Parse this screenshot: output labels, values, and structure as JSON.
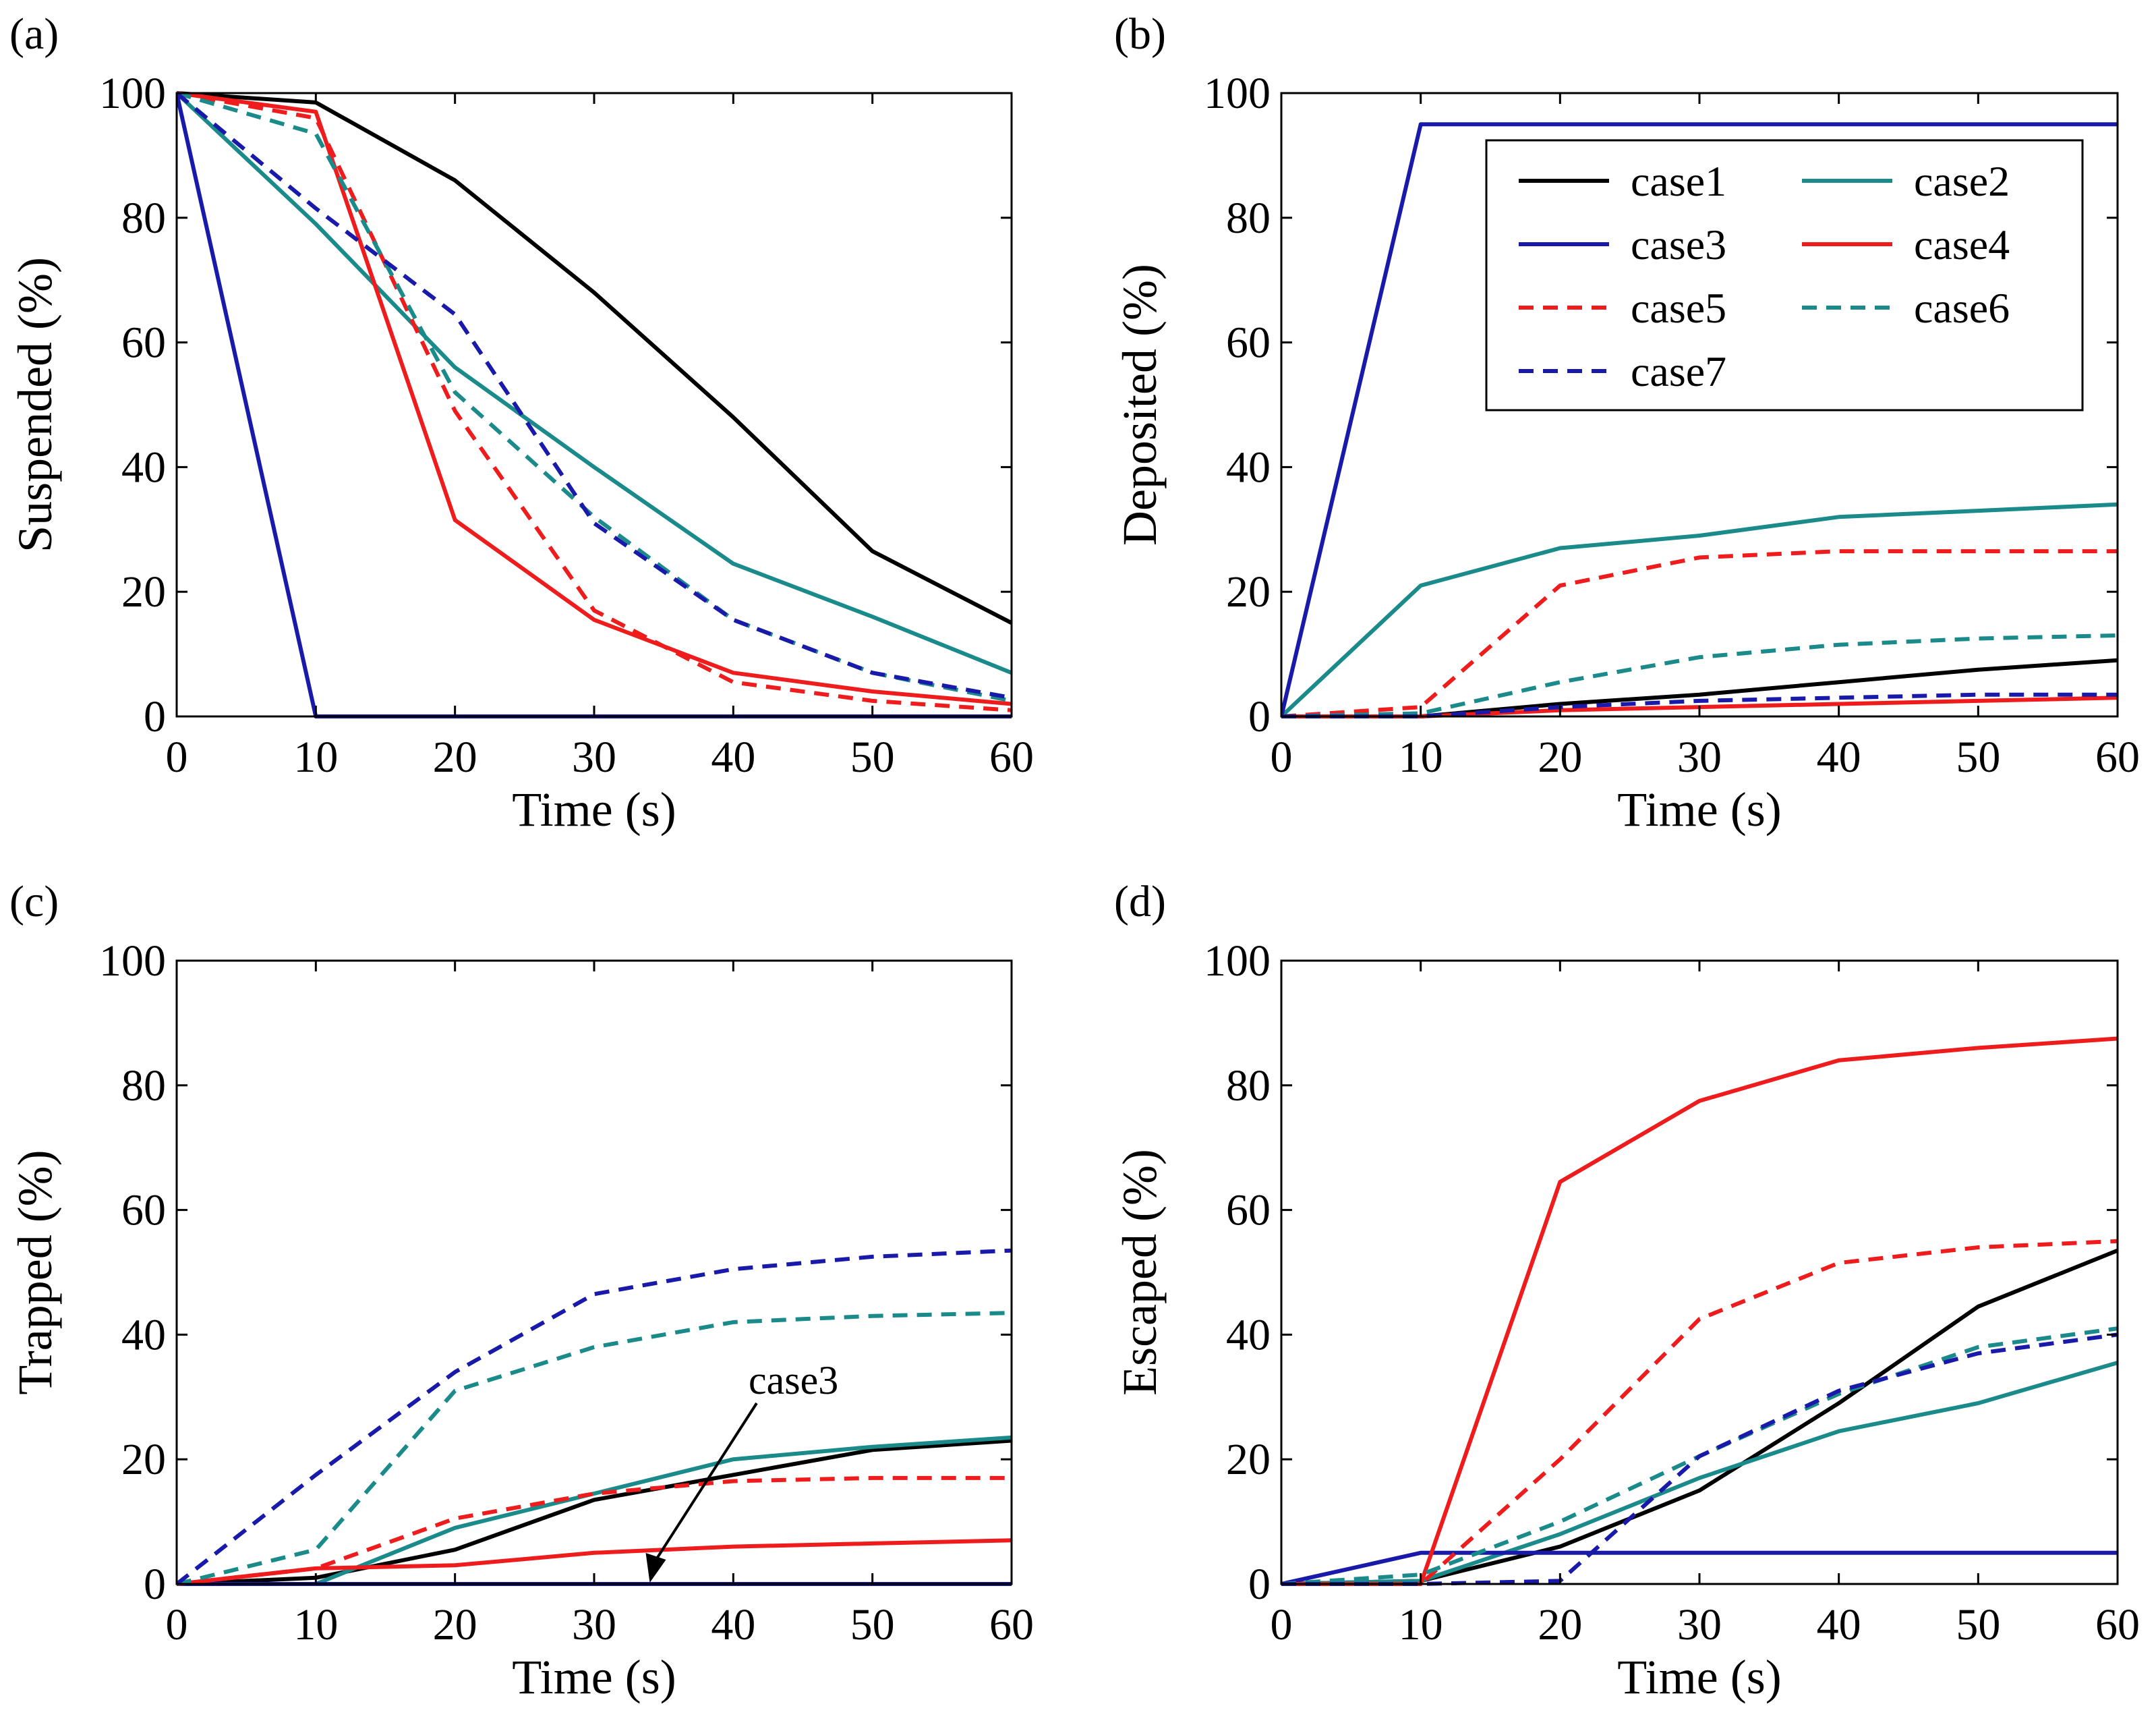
{
  "figure": {
    "panels": [
      "(a)",
      "(b)",
      "(c)",
      "(d)"
    ],
    "legend_position": "top-right of panel (b)"
  },
  "series_styles": {
    "case1": {
      "color": "#000000",
      "dash": "solid"
    },
    "case2": {
      "color": "#1b8a8a",
      "dash": "solid"
    },
    "case3": {
      "color": "#1a1aaa",
      "dash": "solid"
    },
    "case4": {
      "color": "#ee1c1c",
      "dash": "solid"
    },
    "case5": {
      "color": "#ee1c1c",
      "dash": "dashed"
    },
    "case6": {
      "color": "#1b8a8a",
      "dash": "dashed"
    },
    "case7": {
      "color": "#1a1aaa",
      "dash": "dashed"
    }
  },
  "legend": {
    "entries": [
      "case1",
      "case2",
      "case3",
      "case4",
      "case5",
      "case6",
      "case7"
    ]
  },
  "annotation": {
    "text": "case3",
    "panel": "(c)",
    "points_to": {
      "x": 34,
      "y": 0
    }
  },
  "chart_data": [
    {
      "type": "line",
      "panel": "(a)",
      "xlabel": "Time (s)",
      "ylabel": "Suspended (%)",
      "xlim": [
        0,
        60
      ],
      "ylim": [
        0,
        100
      ],
      "xticks": [
        0,
        10,
        20,
        30,
        40,
        50,
        60
      ],
      "yticks": [
        0,
        20,
        40,
        60,
        80,
        100
      ],
      "x": [
        0,
        10,
        20,
        30,
        40,
        50,
        60
      ],
      "series": [
        {
          "name": "case1",
          "values": [
            100,
            98.5,
            86,
            68,
            48,
            26.5,
            15
          ]
        },
        {
          "name": "case2",
          "values": [
            100,
            79,
            56,
            40,
            24.5,
            16,
            7
          ]
        },
        {
          "name": "case3",
          "values": [
            100,
            0,
            0,
            0,
            0,
            0,
            0
          ]
        },
        {
          "name": "case4",
          "values": [
            100,
            97,
            31.5,
            15.5,
            7,
            4,
            2
          ]
        },
        {
          "name": "case5",
          "values": [
            100,
            96,
            49,
            17,
            5.5,
            2.5,
            1
          ]
        },
        {
          "name": "case6",
          "values": [
            100,
            93.5,
            52,
            32,
            15.5,
            7,
            2.5
          ]
        },
        {
          "name": "case7",
          "values": [
            100,
            81.5,
            64.5,
            31,
            15.5,
            7,
            3
          ]
        }
      ]
    },
    {
      "type": "line",
      "panel": "(b)",
      "xlabel": "Time (s)",
      "ylabel": "Deposited (%)",
      "xlim": [
        0,
        60
      ],
      "ylim": [
        0,
        100
      ],
      "xticks": [
        0,
        10,
        20,
        30,
        40,
        50,
        60
      ],
      "yticks": [
        0,
        20,
        40,
        60,
        80,
        100
      ],
      "x": [
        0,
        10,
        20,
        30,
        40,
        50,
        60
      ],
      "series": [
        {
          "name": "case1",
          "values": [
            0,
            0,
            2,
            3.5,
            5.5,
            7.5,
            9
          ]
        },
        {
          "name": "case2",
          "values": [
            0,
            21,
            27,
            29,
            32,
            33,
            34
          ]
        },
        {
          "name": "case3",
          "values": [
            0,
            95,
            95,
            95,
            95,
            95,
            95
          ]
        },
        {
          "name": "case4",
          "values": [
            0,
            0,
            1,
            1.5,
            2,
            2.5,
            3
          ]
        },
        {
          "name": "case5",
          "values": [
            0,
            1.5,
            21,
            25.5,
            26.5,
            26.5,
            26.5
          ]
        },
        {
          "name": "case6",
          "values": [
            0,
            0.5,
            5.5,
            9.5,
            11.5,
            12.5,
            13
          ]
        },
        {
          "name": "case7",
          "values": [
            0,
            0,
            1.5,
            2.5,
            3,
            3.5,
            3.5
          ]
        }
      ]
    },
    {
      "type": "line",
      "panel": "(c)",
      "xlabel": "Time (s)",
      "ylabel": "Trapped (%)",
      "xlim": [
        0,
        60
      ],
      "ylim": [
        0,
        100
      ],
      "xticks": [
        0,
        10,
        20,
        30,
        40,
        50,
        60
      ],
      "yticks": [
        0,
        20,
        40,
        60,
        80,
        100
      ],
      "x": [
        0,
        10,
        20,
        30,
        40,
        50,
        60
      ],
      "series": [
        {
          "name": "case1",
          "values": [
            0,
            1,
            5.5,
            13.5,
            17.5,
            21.5,
            23
          ]
        },
        {
          "name": "case2",
          "values": [
            0,
            0,
            9,
            14.5,
            20,
            22,
            23.5
          ]
        },
        {
          "name": "case3",
          "values": [
            0,
            0,
            0,
            0,
            0,
            0,
            0
          ]
        },
        {
          "name": "case4",
          "values": [
            0,
            2.5,
            3,
            5,
            6,
            6.5,
            7
          ]
        },
        {
          "name": "case5",
          "values": [
            0,
            2.5,
            10.5,
            14.5,
            16.5,
            17,
            17
          ]
        },
        {
          "name": "case6",
          "values": [
            0,
            5.5,
            31,
            38,
            42,
            43,
            43.5
          ]
        },
        {
          "name": "case7",
          "values": [
            0,
            17.5,
            34,
            46.5,
            50.5,
            52.5,
            53.5
          ]
        }
      ]
    },
    {
      "type": "line",
      "panel": "(d)",
      "xlabel": "Time (s)",
      "ylabel": "Escaped (%)",
      "xlim": [
        0,
        60
      ],
      "ylim": [
        0,
        100
      ],
      "xticks": [
        0,
        10,
        20,
        30,
        40,
        50,
        60
      ],
      "yticks": [
        0,
        20,
        40,
        60,
        80,
        100
      ],
      "x": [
        0,
        10,
        20,
        30,
        40,
        50,
        60
      ],
      "series": [
        {
          "name": "case1",
          "values": [
            0,
            0.5,
            6,
            15,
            29,
            44.5,
            53.5
          ]
        },
        {
          "name": "case2",
          "values": [
            0,
            0.5,
            8,
            17,
            24.5,
            29,
            35.5
          ]
        },
        {
          "name": "case3",
          "values": [
            0,
            5,
            5,
            5,
            5,
            5,
            5
          ]
        },
        {
          "name": "case4",
          "values": [
            0,
            0,
            64.5,
            77.5,
            84,
            86,
            87.5
          ]
        },
        {
          "name": "case5",
          "values": [
            0,
            0,
            20,
            42.5,
            51.5,
            54,
            55
          ]
        },
        {
          "name": "case6",
          "values": [
            0,
            1.5,
            10,
            20.5,
            30.5,
            38,
            41
          ]
        },
        {
          "name": "case7",
          "values": [
            0,
            0,
            0.5,
            20.5,
            31,
            37,
            40
          ]
        }
      ]
    }
  ]
}
